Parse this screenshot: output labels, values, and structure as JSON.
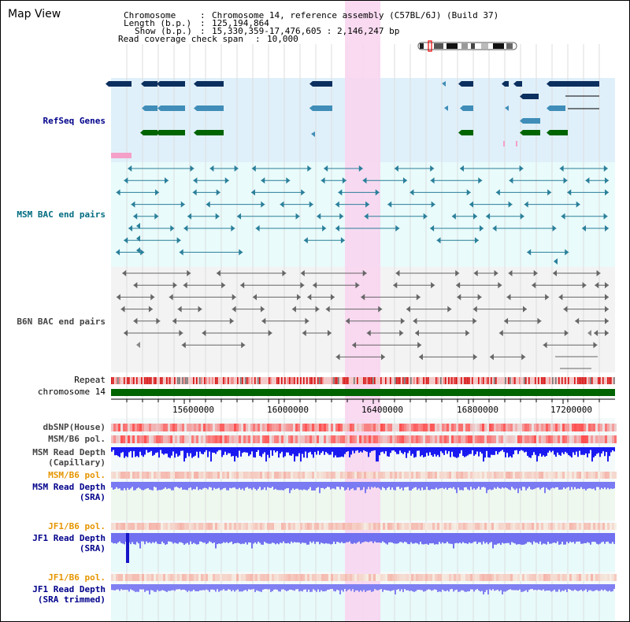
{
  "title": "Map View",
  "header": {
    "chromosome_key": "Chromosome",
    "chromosome_val": "Chromosome 14, reference assembly (C57BL/6J) (Build 37)",
    "length_key": "Length (b.p.)",
    "length_val": "125,194,864",
    "show_key": "Show (b.p.)",
    "show_val": "15,330,359-17,476,605 : 2,146,247 bp",
    "coverage_key": "Read coverage check span",
    "coverage_val": "10,000"
  },
  "tracks": {
    "refseq": "RefSeq Genes",
    "msm_bac": "MSM BAC end pairs",
    "b6n_bac": "B6N BAC end pairs",
    "repeat": "Repeat",
    "chromosome": "chromosome 14",
    "dbsnp": "dbSNP(House)",
    "msm_b6_pol": "MSM/B6 pol.",
    "msm_read_depth_cap_1": "MSM Read Depth",
    "msm_read_depth_cap_2": "(Capillary)",
    "msm_b6_pol_2": "MSM/B6 pol.",
    "msm_read_depth_sra_1": "MSM Read Depth",
    "msm_read_depth_sra_2": "(SRA)",
    "jf1_b6_pol": "JF1/B6 pol.",
    "jf1_read_depth_sra_1": "JF1 Read Depth",
    "jf1_read_depth_sra_2": "(SRA)",
    "jf1_b6_pol_2": "JF1/B6 pol.",
    "jf1_read_depth_trim_1": "JF1 Read Depth",
    "jf1_read_depth_trim_2": "(SRA trimmed)"
  },
  "axis_ticks": [
    "15600000",
    "16000000",
    "16400000",
    "16800000",
    "17200000"
  ],
  "colors": {
    "label_blue": "#00008b",
    "label_teal": "#006b80",
    "label_gray": "#444444",
    "label_orange": "#e69500",
    "highlight": "#f8d6f0",
    "refseq_bg": "#dff0fa",
    "bac_bg": "#e9fbfb",
    "chromosome_green": "#006400"
  }
}
